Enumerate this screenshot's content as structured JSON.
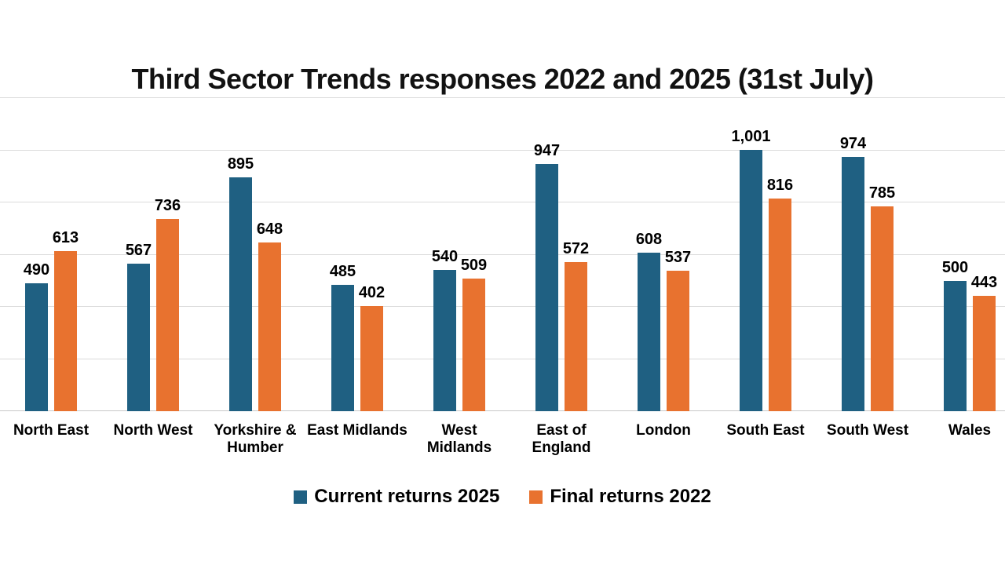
{
  "chart_data": {
    "type": "bar",
    "title": "Third Sector Trends responses 2022 and 2025 (31st July)",
    "categories": [
      "North East",
      "North West",
      "Yorkshire & Humber",
      "East Midlands",
      "West Midlands",
      "East of England",
      "London",
      "South East",
      "South West",
      "Wales"
    ],
    "category_lines": [
      [
        "North East"
      ],
      [
        "North West"
      ],
      [
        "Yorkshire &",
        "Humber"
      ],
      [
        "East Midlands"
      ],
      [
        "West",
        "Midlands"
      ],
      [
        "East of",
        "England"
      ],
      [
        "London"
      ],
      [
        "South East"
      ],
      [
        "South West"
      ],
      [
        "Wales"
      ]
    ],
    "series": [
      {
        "name": "Current returns 2025",
        "color": "#1f6082",
        "values": [
          490,
          567,
          895,
          485,
          540,
          947,
          608,
          1001,
          974,
          500
        ],
        "labels": [
          "490",
          "567",
          "895",
          "485",
          "540",
          "947",
          "608",
          "1,001",
          "974",
          "500"
        ]
      },
      {
        "name": "Final returns 2022",
        "color": "#e8722f",
        "values": [
          613,
          736,
          648,
          402,
          509,
          572,
          537,
          816,
          785,
          443
        ],
        "labels": [
          "613",
          "736",
          "648",
          "402",
          "509",
          "572",
          "537",
          "816",
          "785",
          "443"
        ]
      }
    ],
    "xlabel": "",
    "ylabel": "",
    "ylim": [
      0,
      1200
    ],
    "gridline_step": 200,
    "grid": "horizontal",
    "y_axis_tick_labels_visible": false,
    "legend_position": "bottom"
  },
  "colors": {
    "background": "#ffffff",
    "gridline": "#dbdbdb",
    "axis_line": "#c8c8c8",
    "text": "#000000"
  }
}
